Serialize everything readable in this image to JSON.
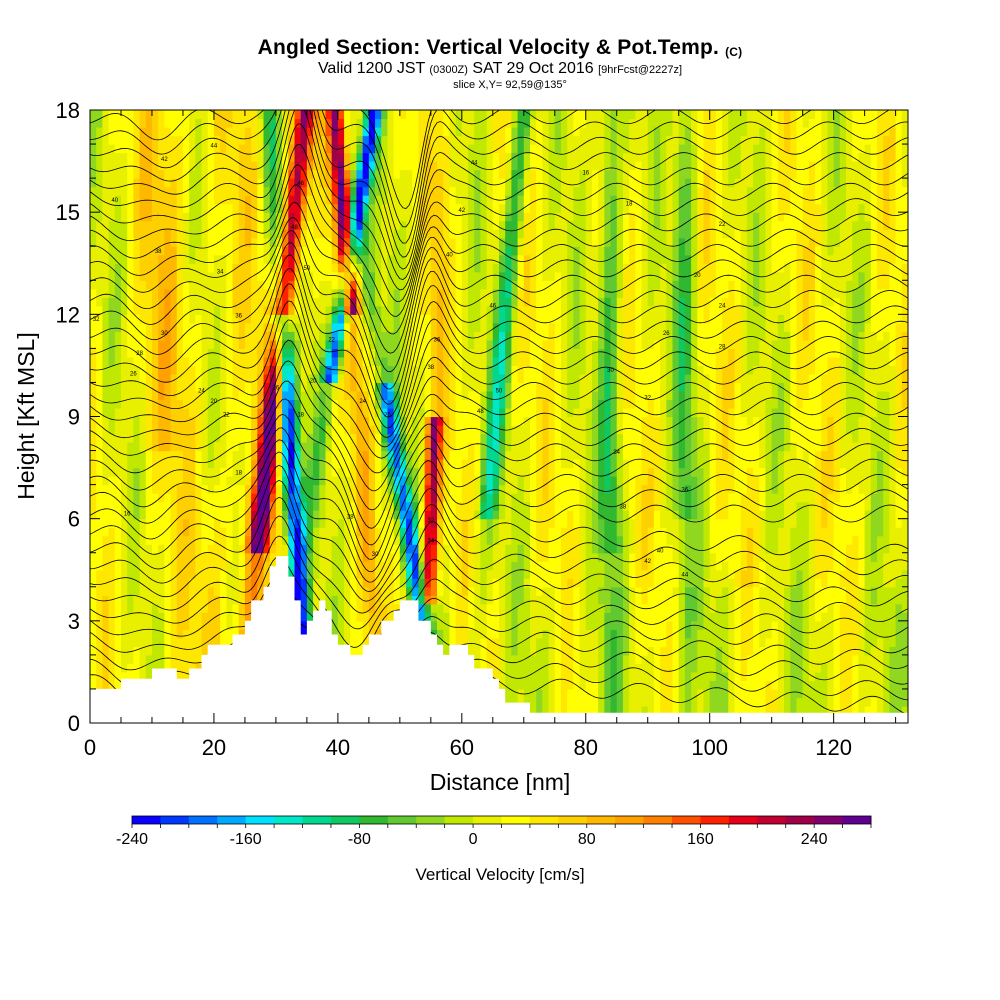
{
  "header": {
    "title": "Angled Section: Vertical Velocity & Pot.Temp.",
    "title_unit": "(C)",
    "valid_main": "Valid 1200 JST",
    "valid_utc": "(0300Z)",
    "valid_date": "SAT 29 Oct 2016",
    "valid_fcst": "[9hrFcst@2227z]",
    "slice": "slice X,Y= 92,59@135°"
  },
  "chart_data": {
    "type": "heatmap",
    "xlabel": "Distance [nm]",
    "ylabel": "Height [Kft MSL]",
    "xlim": [
      0,
      132
    ],
    "ylim": [
      0,
      18
    ],
    "x_ticks": [
      0,
      20,
      40,
      60,
      80,
      100,
      120
    ],
    "y_ticks": [
      0,
      3,
      6,
      9,
      12,
      15,
      18
    ],
    "colorbar": {
      "label": "Vertical Velocity [cm/s]",
      "min": -240,
      "max": 280,
      "step": 20,
      "tick_values": [
        -240,
        -160,
        -80,
        0,
        80,
        160,
        240
      ],
      "tick_labels": [
        "-240",
        "-160",
        "-80",
        "0",
        "80",
        "160",
        "240"
      ],
      "colors": [
        "#0a00ff",
        "#0038ff",
        "#0070ff",
        "#00a8ff",
        "#00e0ff",
        "#00e8c8",
        "#00d890",
        "#10c860",
        "#30b830",
        "#60c830",
        "#90d820",
        "#c0e800",
        "#e8f000",
        "#ffff00",
        "#ffe800",
        "#ffd000",
        "#ffb800",
        "#ffa000",
        "#ff8000",
        "#ff5000",
        "#ff2000",
        "#e80018",
        "#c00030",
        "#a00048",
        "#800070",
        "#600090"
      ]
    },
    "terrain_profile": [
      [
        0,
        1.0
      ],
      [
        5,
        1.0
      ],
      [
        5,
        1.3
      ],
      [
        10,
        1.3
      ],
      [
        10,
        1.6
      ],
      [
        14,
        1.6
      ],
      [
        14,
        1.3
      ],
      [
        16,
        1.3
      ],
      [
        16,
        1.6
      ],
      [
        18,
        1.6
      ],
      [
        18,
        2.0
      ],
      [
        19,
        2.0
      ],
      [
        19,
        2.3
      ],
      [
        23,
        2.3
      ],
      [
        23,
        2.6
      ],
      [
        25,
        2.6
      ],
      [
        25,
        3.0
      ],
      [
        26,
        3.0
      ],
      [
        26,
        3.6
      ],
      [
        28,
        3.6
      ],
      [
        28,
        4.0
      ],
      [
        29,
        4.0
      ],
      [
        29,
        4.6
      ],
      [
        30,
        4.6
      ],
      [
        30,
        4.9
      ],
      [
        32,
        4.9
      ],
      [
        32,
        4.3
      ],
      [
        33,
        4.3
      ],
      [
        33,
        3.6
      ],
      [
        34,
        3.6
      ],
      [
        34,
        2.6
      ],
      [
        35,
        2.6
      ],
      [
        35,
        3.0
      ],
      [
        36,
        3.0
      ],
      [
        36,
        3.3
      ],
      [
        37,
        3.3
      ],
      [
        37,
        3.6
      ],
      [
        38,
        3.6
      ],
      [
        38,
        3.3
      ],
      [
        39,
        3.3
      ],
      [
        39,
        2.6
      ],
      [
        40,
        2.6
      ],
      [
        40,
        2.3
      ],
      [
        42,
        2.3
      ],
      [
        42,
        2.0
      ],
      [
        44,
        2.0
      ],
      [
        44,
        2.3
      ],
      [
        45,
        2.3
      ],
      [
        45,
        2.6
      ],
      [
        47,
        2.6
      ],
      [
        47,
        3.0
      ],
      [
        49,
        3.0
      ],
      [
        49,
        3.3
      ],
      [
        50,
        3.3
      ],
      [
        50,
        3.6
      ],
      [
        53,
        3.6
      ],
      [
        53,
        3.0
      ],
      [
        55,
        3.0
      ],
      [
        55,
        2.6
      ],
      [
        56,
        2.6
      ],
      [
        56,
        2.3
      ],
      [
        57,
        2.3
      ],
      [
        57,
        2.0
      ],
      [
        58,
        2.0
      ],
      [
        58,
        2.3
      ],
      [
        61,
        2.3
      ],
      [
        61,
        2.0
      ],
      [
        62,
        2.0
      ],
      [
        62,
        1.6
      ],
      [
        65,
        1.6
      ],
      [
        65,
        1.3
      ],
      [
        66,
        1.3
      ],
      [
        66,
        1.0
      ],
      [
        67,
        1.0
      ],
      [
        67,
        0.6
      ],
      [
        71,
        0.6
      ],
      [
        71,
        0.3
      ],
      [
        132,
        0.3
      ]
    ],
    "theta_contour_labels": [
      "16",
      "18",
      "20",
      "22",
      "24",
      "26",
      "28",
      "30",
      "32",
      "34",
      "36",
      "38",
      "40",
      "42",
      "44",
      "46",
      "48",
      "50"
    ]
  }
}
